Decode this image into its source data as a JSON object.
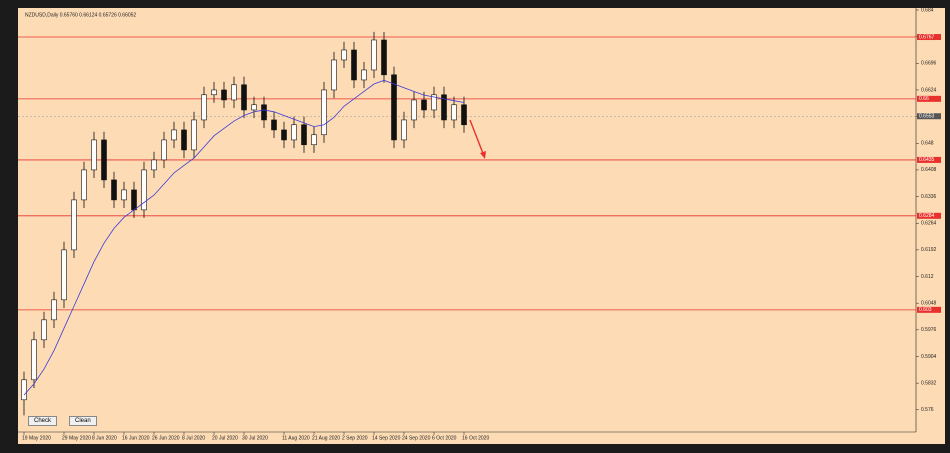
{
  "chart_data": {
    "type": "candlestick",
    "title": "NZDUSD,Daily 0.65760 0.66124 0.65726 0.66052",
    "categories": [
      "19 May 2020",
      null,
      null,
      null,
      "29 May 2020",
      null,
      null,
      "8 Jun 2020",
      null,
      null,
      "16 Jun 2020",
      null,
      null,
      "26 Jun 2020",
      null,
      null,
      "8 Jul 2020",
      null,
      null,
      "20 Jul 2020",
      null,
      null,
      "30 Jul 2020",
      null,
      null,
      null,
      "11 Aug 2020",
      null,
      null,
      "21 Aug 2020",
      null,
      null,
      "2 Sep 2020",
      null,
      null,
      "14 Sep 2020",
      null,
      null,
      "24 Sep 2020",
      null,
      null,
      "6 Oct 2020",
      null,
      null,
      "16 Oct 2020"
    ],
    "open": [
      0.5787,
      0.5841,
      0.5949,
      0.6003,
      0.6057,
      0.6192,
      0.6327,
      0.6408,
      0.6489,
      0.6381,
      0.6327,
      0.6354,
      0.63,
      0.6408,
      0.6435,
      0.6489,
      0.6516,
      0.6462,
      0.6543,
      0.6611,
      0.6624,
      0.6597,
      0.6638,
      0.657,
      0.6584,
      0.6543,
      0.6516,
      0.6489,
      0.653,
      0.6476,
      0.6503,
      0.6624,
      0.6705,
      0.6732,
      0.6651,
      0.6678,
      0.6759,
      0.6665,
      0.6489,
      0.6543,
      0.6597,
      0.657,
      0.6611,
      0.6543,
      0.6584
    ],
    "high": [
      0.5863,
      0.5971,
      0.6025,
      0.6079,
      0.6214,
      0.6349,
      0.643,
      0.6511,
      0.6511,
      0.6403,
      0.6376,
      0.6376,
      0.643,
      0.6457,
      0.6511,
      0.6538,
      0.6538,
      0.6565,
      0.6633,
      0.6646,
      0.6646,
      0.666,
      0.666,
      0.6606,
      0.6606,
      0.6565,
      0.6538,
      0.6552,
      0.6552,
      0.6525,
      0.6646,
      0.6727,
      0.6754,
      0.6754,
      0.67,
      0.6781,
      0.6781,
      0.6687,
      0.6565,
      0.6619,
      0.6619,
      0.6633,
      0.6633,
      0.6606,
      0.6606
    ],
    "low": [
      0.5745,
      0.5819,
      0.5927,
      0.5981,
      0.6035,
      0.617,
      0.6305,
      0.6386,
      0.6359,
      0.6305,
      0.6305,
      0.6278,
      0.6278,
      0.6386,
      0.6413,
      0.6467,
      0.644,
      0.644,
      0.6521,
      0.6589,
      0.6575,
      0.6575,
      0.6548,
      0.6548,
      0.6521,
      0.6494,
      0.6467,
      0.6467,
      0.6454,
      0.6454,
      0.6481,
      0.6602,
      0.6683,
      0.6629,
      0.6629,
      0.6656,
      0.6643,
      0.6467,
      0.6467,
      0.6521,
      0.6548,
      0.6548,
      0.6521,
      0.6521,
      0.6508
    ],
    "close": [
      0.5841,
      0.5949,
      0.6003,
      0.6057,
      0.6192,
      0.6327,
      0.6408,
      0.6489,
      0.6381,
      0.6327,
      0.6354,
      0.63,
      0.6408,
      0.6435,
      0.6489,
      0.6516,
      0.6462,
      0.6543,
      0.6611,
      0.6624,
      0.6597,
      0.6638,
      0.657,
      0.6584,
      0.6543,
      0.6516,
      0.6489,
      0.653,
      0.6476,
      0.6503,
      0.6624,
      0.6705,
      0.6732,
      0.6651,
      0.6678,
      0.6759,
      0.6665,
      0.6489,
      0.6543,
      0.6597,
      0.657,
      0.6611,
      0.6543,
      0.6584,
      0.653
    ],
    "ma": {
      "color": "#3b3bd6",
      "values": [
        0.58,
        0.583,
        0.587,
        0.592,
        0.598,
        0.604,
        0.61,
        0.616,
        0.621,
        0.625,
        0.628,
        0.63,
        0.632,
        0.634,
        0.637,
        0.64,
        0.642,
        0.644,
        0.647,
        0.65,
        0.652,
        0.654,
        0.6555,
        0.6565,
        0.657,
        0.6565,
        0.6555,
        0.6545,
        0.6535,
        0.6525,
        0.653,
        0.655,
        0.658,
        0.66,
        0.662,
        0.664,
        0.665,
        0.664,
        0.663,
        0.662,
        0.661,
        0.6605,
        0.66,
        0.6595,
        0.659
      ]
    },
    "levels": [
      0.6767,
      0.66,
      0.6435,
      0.6284,
      0.603
    ],
    "level_color": "#e8312c",
    "current_price": 0.6553,
    "ylim": [
      0.57,
      0.684
    ],
    "yticks": [
      0.576,
      0.5832,
      0.5904,
      0.5976,
      0.6048,
      0.612,
      0.6192,
      0.6264,
      0.6336,
      0.6408,
      0.648,
      0.6552,
      0.6624,
      0.6696,
      0.6768,
      0.684
    ],
    "buttons": [
      "Check",
      "Clean"
    ]
  }
}
